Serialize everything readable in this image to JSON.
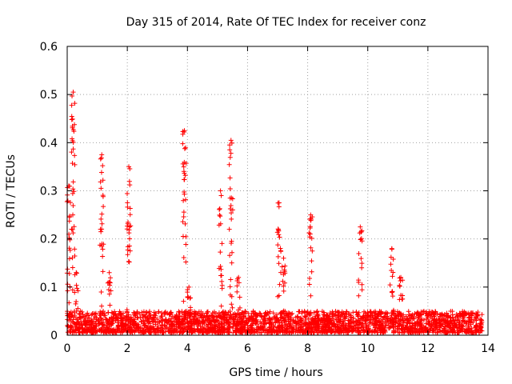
{
  "chart_data": {
    "type": "scatter",
    "title": "Day 315 of 2014, Rate Of TEC Index for receiver conz",
    "xlabel": "GPS time / hours",
    "ylabel": "ROTI / TECUs",
    "xlim": [
      0,
      14
    ],
    "ylim": [
      0,
      0.6
    ],
    "xticks": [
      0,
      2,
      4,
      6,
      8,
      10,
      12,
      14
    ],
    "yticks": [
      0,
      0.1,
      0.2,
      0.3,
      0.4,
      0.5,
      0.6
    ],
    "xtick_labels": [
      "0",
      "2",
      "4",
      "6",
      "8",
      "10",
      "12",
      "14"
    ],
    "ytick_labels": [
      "0",
      "0.1",
      "0.2",
      "0.3",
      "0.4",
      "0.5",
      "0.6"
    ],
    "grid": true,
    "marker": "+",
    "color": "#ff0000",
    "baseline": {
      "x_range": [
        0,
        13.8
      ],
      "y_min": 0.005,
      "y_max": 0.05
    },
    "spikes": [
      {
        "x": 0.05,
        "y_max": 0.31
      },
      {
        "x": 0.2,
        "y_max": 0.505
      },
      {
        "x": 0.3,
        "y_max": 0.13
      },
      {
        "x": 1.15,
        "y_max": 0.375
      },
      {
        "x": 1.4,
        "y_max": 0.13
      },
      {
        "x": 2.05,
        "y_max": 0.35
      },
      {
        "x": 3.9,
        "y_max": 0.425
      },
      {
        "x": 4.05,
        "y_max": 0.1
      },
      {
        "x": 5.1,
        "y_max": 0.3
      },
      {
        "x": 5.45,
        "y_max": 0.405
      },
      {
        "x": 5.7,
        "y_max": 0.12
      },
      {
        "x": 7.05,
        "y_max": 0.275
      },
      {
        "x": 7.2,
        "y_max": 0.16
      },
      {
        "x": 8.1,
        "y_max": 0.25
      },
      {
        "x": 9.75,
        "y_max": 0.225
      },
      {
        "x": 10.8,
        "y_max": 0.18
      },
      {
        "x": 11.1,
        "y_max": 0.12
      }
    ]
  }
}
